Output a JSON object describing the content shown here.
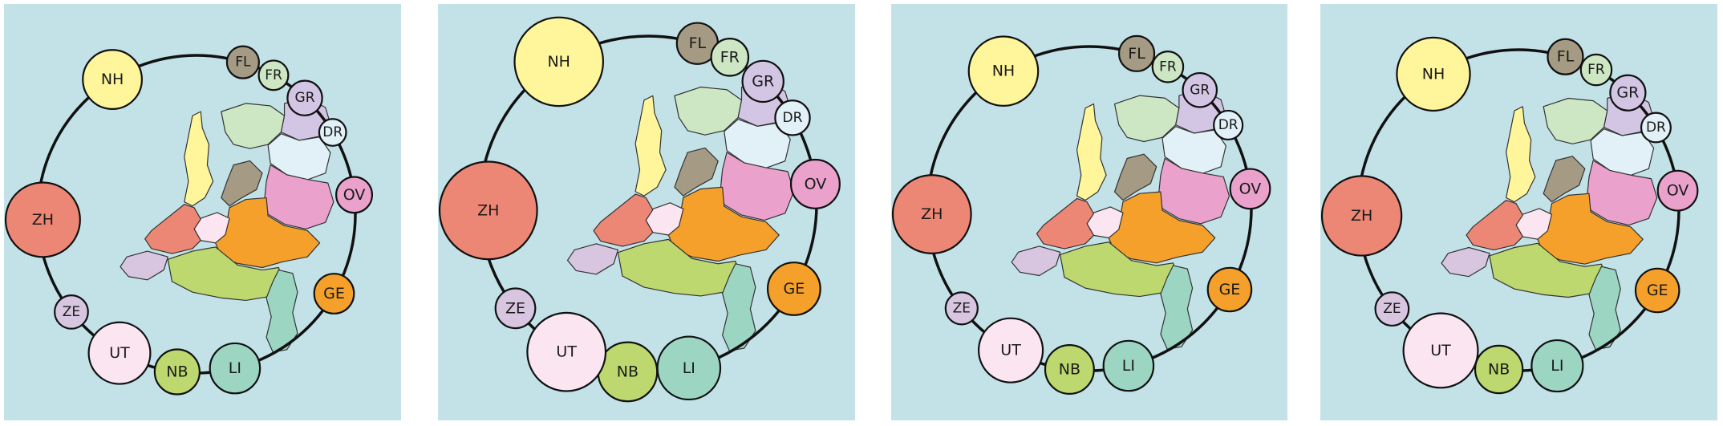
{
  "colors": {
    "background": "#c2e2e8",
    "ring": "#111111",
    "NH": "#fff59b",
    "FL": "#a59a83",
    "FR": "#cde6c3",
    "GR": "#d3c6e4",
    "DR": "#e1f1f7",
    "OV": "#eaa1cb",
    "GE": "#f4a02a",
    "LI": "#9cd6c2",
    "NB": "#bcd86e",
    "UT": "#fae5f1",
    "ZE": "#d8c6e0",
    "ZH": "#ed8775"
  },
  "legend_labels": {
    "NH": "NH",
    "FL": "FL",
    "FR": "FR",
    "GR": "GR",
    "DR": "DR",
    "OV": "OV",
    "GE": "GE",
    "LI": "LI",
    "NB": "NB",
    "UT": "UT",
    "ZE": "ZE",
    "ZH": "ZH"
  },
  "panels": [
    {
      "id": "panel-1",
      "sizes": {
        "NH": 0.92,
        "FL": 0.5,
        "FR": 0.46,
        "GR": 0.54,
        "DR": 0.42,
        "OV": 0.56,
        "GE": 0.62,
        "LI": 0.78,
        "NB": 0.7,
        "UT": 0.96,
        "ZE": 0.52,
        "ZH": 1.16
      }
    },
    {
      "id": "panel-2",
      "sizes": {
        "NH": 1.38,
        "FL": 0.64,
        "FR": 0.58,
        "GR": 0.64,
        "DR": 0.54,
        "OV": 0.76,
        "GE": 0.82,
        "LI": 0.98,
        "NB": 0.92,
        "UT": 1.22,
        "ZE": 0.62,
        "ZH": 1.52
      }
    },
    {
      "id": "panel-3",
      "sizes": {
        "NH": 1.08,
        "FL": 0.55,
        "FR": 0.48,
        "GR": 0.53,
        "DR": 0.45,
        "OV": 0.62,
        "GE": 0.68,
        "LI": 0.78,
        "NB": 0.76,
        "UT": 1.0,
        "ZE": 0.5,
        "ZH": 1.22
      }
    },
    {
      "id": "panel-4",
      "sizes": {
        "NH": 1.14,
        "FL": 0.55,
        "FR": 0.48,
        "GR": 0.55,
        "DR": 0.46,
        "OV": 0.62,
        "GE": 0.68,
        "LI": 0.8,
        "NB": 0.74,
        "UT": 1.16,
        "ZE": 0.52,
        "ZH": 1.24
      }
    }
  ]
}
